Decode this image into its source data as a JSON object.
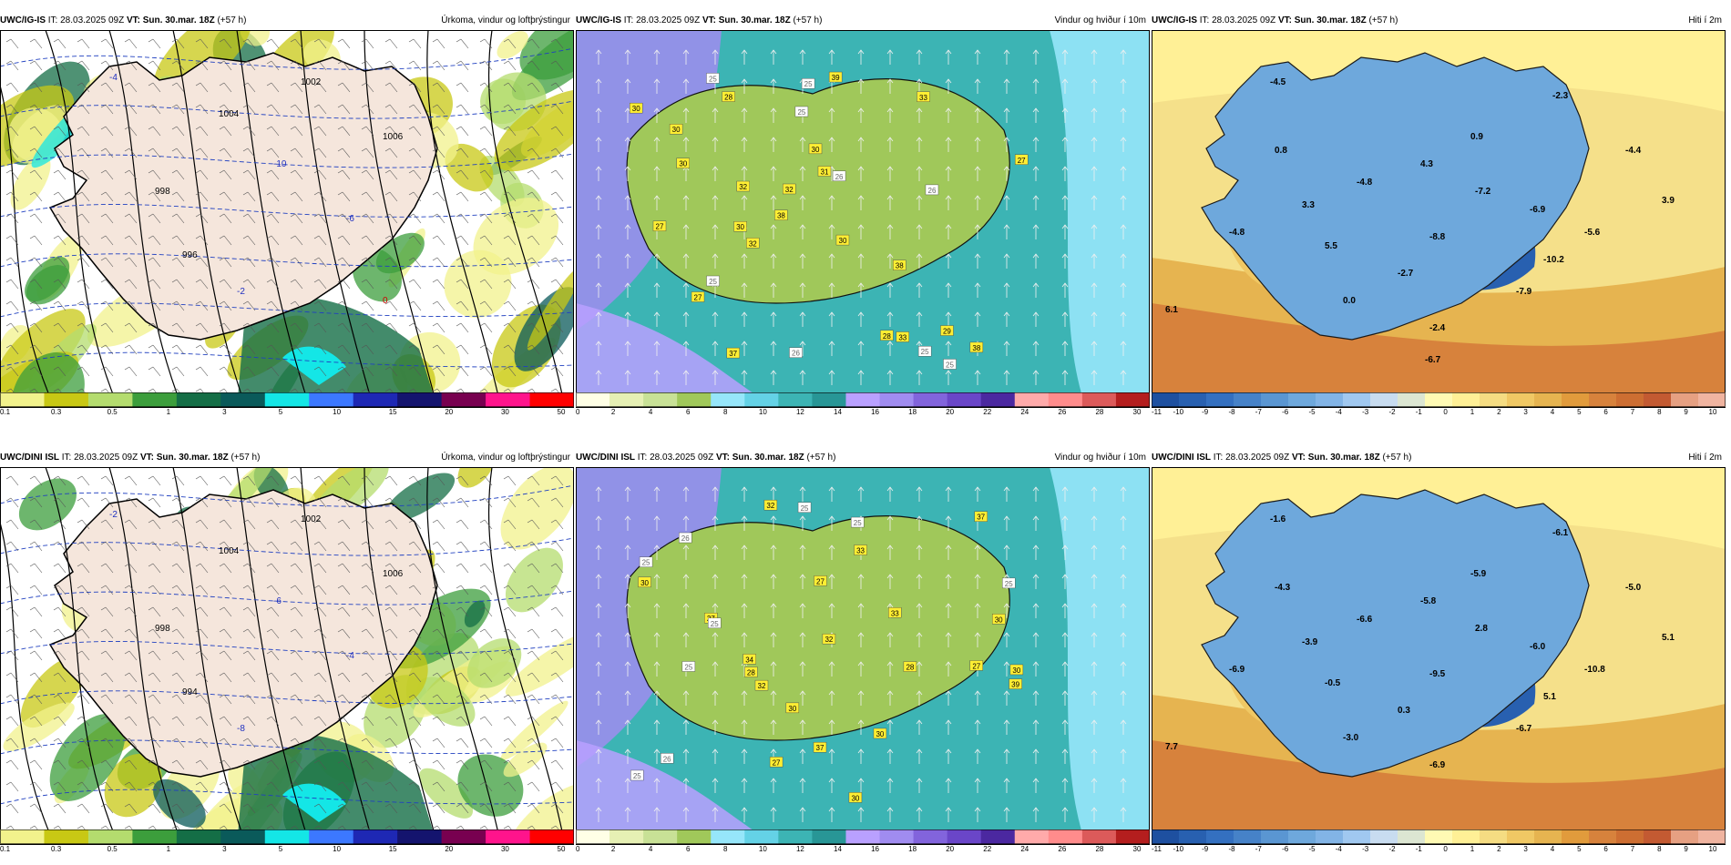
{
  "rows": [
    {
      "panels": [
        {
          "model": "UWC/IG-IS",
          "it_label": "IT:",
          "it": "28.03.2025 09Z",
          "vt_label": "VT:",
          "vt": "Sun. 30.mar. 18Z",
          "lead": "(+57 h)",
          "title": "Úrkoma, vindur og loftþrýstingur",
          "kind": "precip",
          "scale_colors": [
            "#f2f28c",
            "#c8c814",
            "#b4dc6e",
            "#3c9e3c",
            "#146e46",
            "#0a5a5a",
            "#14e6e6",
            "#3c78ff",
            "#1e28b4",
            "#14146e",
            "#780050",
            "#ff148c",
            "#ff0000"
          ],
          "ticks": [
            "0.1",
            "0.3",
            "0.5",
            "1",
            "3",
            "5",
            "10",
            "15",
            "20",
            "30",
            "50"
          ],
          "labels": [
            {
              "t": "1002",
              "c": "#000"
            },
            {
              "t": "1004",
              "c": "#000"
            },
            {
              "t": "1006",
              "c": "#000"
            },
            {
              "t": "998",
              "c": "#000"
            },
            {
              "t": "996",
              "c": "#000"
            },
            {
              "t": "-10",
              "c": "#2030c0"
            },
            {
              "t": "-6",
              "c": "#2030c0"
            },
            {
              "t": "-4",
              "c": "#2030c0"
            },
            {
              "t": "-2",
              "c": "#2030c0"
            },
            {
              "t": "0",
              "c": "#d00000"
            }
          ]
        },
        {
          "model": "UWC/IG-IS",
          "it_label": "IT:",
          "it": "28.03.2025 09Z",
          "vt_label": "VT:",
          "vt": "Sun. 30.mar. 18Z",
          "lead": "(+57 h)",
          "title": "Vindur og hviður í 10m",
          "kind": "wind",
          "scale_colors": [
            "#ffffe6",
            "#e6f0b4",
            "#c8e196",
            "#a0c85a",
            "#96e6fa",
            "#64d2e6",
            "#3cb4b4",
            "#289696",
            "#b9a0ff",
            "#a08cf0",
            "#8264dc",
            "#6a46c8",
            "#4b28a0",
            "#ffaaaa",
            "#ff8c8c",
            "#dc5a5a",
            "#b41e1e"
          ],
          "ticks": [
            "0",
            "2",
            "4",
            "6",
            "8",
            "10",
            "12",
            "14",
            "16",
            "18",
            "20",
            "22",
            "24",
            "26",
            "28",
            "30"
          ],
          "gusts": [
            "27",
            "28",
            "30",
            "27",
            "28",
            "25",
            "26",
            "32",
            "25",
            "26",
            "25",
            "38",
            "33",
            "38",
            "39",
            "38",
            "30",
            "31",
            "29",
            "30",
            "30",
            "32",
            "30",
            "25",
            "37",
            "25",
            "33",
            "27",
            "26",
            "32",
            "25",
            "30"
          ],
          "labels": []
        },
        {
          "model": "UWC/IG-IS",
          "it_label": "IT:",
          "it": "28.03.2025 09Z",
          "vt_label": "VT:",
          "vt": "Sun. 30.mar. 18Z",
          "lead": "(+57 h)",
          "title": "Hiti í 2m",
          "kind": "temp",
          "scale_colors": [
            "#1e50a0",
            "#2860b0",
            "#3470c0",
            "#4682c8",
            "#5a96d2",
            "#6ea8dc",
            "#82b4e6",
            "#a0c8f0",
            "#c8dcf0",
            "#dce6d2",
            "#fffab4",
            "#fff096",
            "#f5dc82",
            "#f0c864",
            "#e6b450",
            "#e19b3c",
            "#d7823c",
            "#cd6e32",
            "#c35a32",
            "#e6a082",
            "#f0b4a0"
          ],
          "ticks": [
            "-11",
            "-10",
            "-9",
            "-8",
            "-7",
            "-6",
            "-5",
            "-4",
            "-3",
            "-2",
            "-1",
            "0",
            "1",
            "2",
            "3",
            "4",
            "5",
            "6",
            "7",
            "8",
            "9",
            "10"
          ],
          "labels": [
            "-4.5",
            "-2.3",
            "0.8",
            "0.9",
            "-4.4",
            "4.3",
            "-7.2",
            "-4.8",
            "3.3",
            "-6.9",
            "3.9",
            "-4.8",
            "-8.8",
            "-5.6",
            "5.5",
            "-2.7",
            "-10.2",
            "-7.9",
            "0.0",
            "6.1",
            "-2.4",
            "-6.7"
          ]
        }
      ]
    },
    {
      "panels": [
        {
          "model": "UWC/DINI ISL",
          "it_label": "IT:",
          "it": "28.03.2025 09Z",
          "vt_label": "VT:",
          "vt": "Sun. 30.mar. 18Z",
          "lead": "(+57 h)",
          "title": "Úrkoma, vindur og loftþrýstingur",
          "kind": "precip",
          "scale_colors": [
            "#f2f28c",
            "#c8c814",
            "#b4dc6e",
            "#3c9e3c",
            "#146e46",
            "#0a5a5a",
            "#14e6e6",
            "#3c78ff",
            "#1e28b4",
            "#14146e",
            "#780050",
            "#ff148c",
            "#ff0000"
          ],
          "ticks": [
            "0.1",
            "0.3",
            "0.5",
            "1",
            "3",
            "5",
            "10",
            "15",
            "20",
            "30",
            "50"
          ],
          "labels": [
            {
              "t": "1002",
              "c": "#000"
            },
            {
              "t": "1004",
              "c": "#000"
            },
            {
              "t": "1006",
              "c": "#000"
            },
            {
              "t": "998",
              "c": "#000"
            },
            {
              "t": "994",
              "c": "#000"
            },
            {
              "t": "-6",
              "c": "#2030c0"
            },
            {
              "t": "-4",
              "c": "#2030c0"
            },
            {
              "t": "-2",
              "c": "#2030c0"
            },
            {
              "t": "-8",
              "c": "#2030c0"
            }
          ]
        },
        {
          "model": "UWC/DINI ISL",
          "it_label": "IT:",
          "it": "28.03.2025 09Z",
          "vt_label": "VT:",
          "vt": "Sun. 30.mar. 18Z",
          "lead": "(+57 h)",
          "title": "Vindur og hviður í 10m",
          "kind": "wind",
          "scale_colors": [
            "#ffffe6",
            "#e6f0b4",
            "#c8e196",
            "#a0c85a",
            "#96e6fa",
            "#64d2e6",
            "#3cb4b4",
            "#289696",
            "#b9a0ff",
            "#a08cf0",
            "#8264dc",
            "#6a46c8",
            "#4b28a0",
            "#ffaaaa",
            "#ff8c8c",
            "#dc5a5a",
            "#b41e1e"
          ],
          "ticks": [
            "0",
            "2",
            "4",
            "6",
            "8",
            "10",
            "12",
            "14",
            "16",
            "18",
            "20",
            "22",
            "24",
            "26",
            "28",
            "30"
          ],
          "gusts": [
            "30",
            "28",
            "27",
            "27",
            "25",
            "34",
            "27",
            "26",
            "25",
            "30",
            "37",
            "26",
            "39",
            "30",
            "25",
            "33",
            "37",
            "32",
            "32",
            "30",
            "32",
            "27",
            "25",
            "25",
            "30",
            "33",
            "30",
            "28",
            "25",
            "25"
          ],
          "labels": []
        },
        {
          "model": "UWC/DINI ISL",
          "it_label": "IT:",
          "it": "28.03.2025 09Z",
          "vt_label": "VT:",
          "vt": "Sun. 30.mar. 18Z",
          "lead": "(+57 h)",
          "title": "Hiti í 2m",
          "kind": "temp",
          "scale_colors": [
            "#1e50a0",
            "#2860b0",
            "#3470c0",
            "#4682c8",
            "#5a96d2",
            "#6ea8dc",
            "#82b4e6",
            "#a0c8f0",
            "#c8dcf0",
            "#dce6d2",
            "#fffab4",
            "#fff096",
            "#f5dc82",
            "#f0c864",
            "#e6b450",
            "#e19b3c",
            "#d7823c",
            "#cd6e32",
            "#c35a32",
            "#e6a082",
            "#f0b4a0"
          ],
          "ticks": [
            "-11",
            "-10",
            "-9",
            "-8",
            "-7",
            "-6",
            "-5",
            "-4",
            "-3",
            "-2",
            "-1",
            "0",
            "1",
            "2",
            "3",
            "4",
            "5",
            "6",
            "7",
            "8",
            "9",
            "10"
          ],
          "labels": [
            "-1.6",
            "-6.1",
            "-4.3",
            "-5.9",
            "-5.0",
            "-5.8",
            "2.8",
            "-6.6",
            "-3.9",
            "-6.0",
            "5.1",
            "-6.9",
            "-9.5",
            "-10.8",
            "-0.5",
            "0.3",
            "5.1",
            "-6.7",
            "-3.0",
            "7.7",
            "-6.9"
          ]
        }
      ]
    }
  ]
}
